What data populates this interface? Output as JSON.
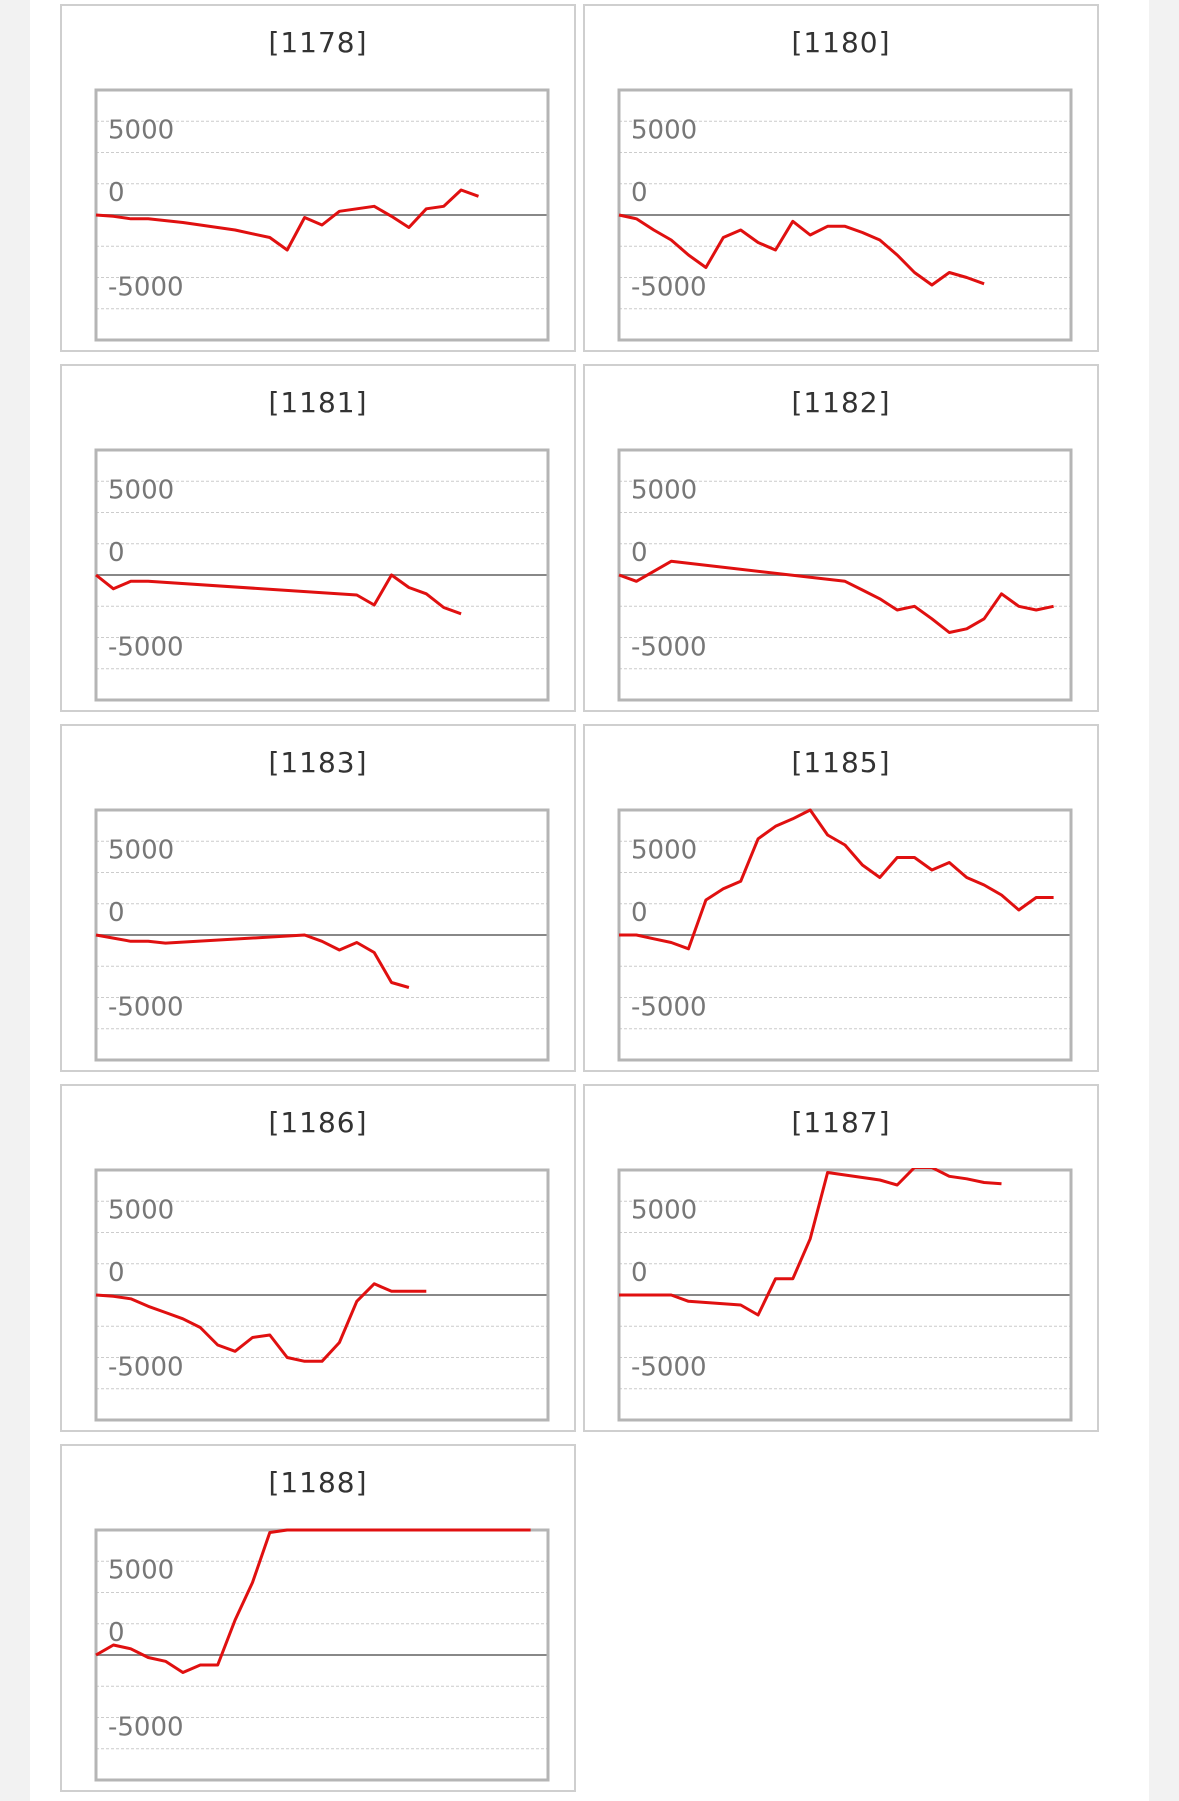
{
  "colors": {
    "line": "#e01010",
    "grid": "#cccccc",
    "zero_line": "#888888",
    "frame": "#b5b5b5",
    "tick_label": "#777777"
  },
  "y_ticks": [
    {
      "value": 5000,
      "label": "5000"
    },
    {
      "value": 0,
      "label": "0"
    },
    {
      "value": -5000,
      "label": "-5000"
    }
  ],
  "chart_data": [
    {
      "type": "line",
      "title": "[1178]",
      "ylim": [
        -10000,
        10000
      ],
      "xlim": [
        0,
        26
      ],
      "grid": true,
      "series": [
        {
          "x": [
            0,
            1,
            2,
            3,
            4,
            5,
            6,
            7,
            8,
            9,
            10,
            11,
            12,
            13,
            14,
            15,
            16,
            17,
            18,
            19,
            20,
            21,
            22
          ],
          "y": [
            0,
            -100,
            -300,
            -300,
            -450,
            -600,
            -800,
            -1000,
            -1200,
            -1500,
            -1800,
            -2800,
            -200,
            -800,
            300,
            500,
            700,
            -100,
            -1000,
            500,
            700,
            2000,
            1500
          ]
        }
      ]
    },
    {
      "type": "line",
      "title": "[1180]",
      "ylim": [
        -10000,
        10000
      ],
      "xlim": [
        0,
        26
      ],
      "grid": true,
      "series": [
        {
          "x": [
            0,
            1,
            2,
            3,
            4,
            5,
            6,
            7,
            8,
            9,
            10,
            11,
            12,
            13,
            14,
            15,
            16,
            17,
            18,
            19,
            20,
            21
          ],
          "y": [
            0,
            -300,
            -1200,
            -2000,
            -3200,
            -4200,
            -1800,
            -1200,
            -2200,
            -2800,
            -500,
            -1600,
            -900,
            -900,
            -1400,
            -2000,
            -3200,
            -4600,
            -5600,
            -4600,
            -5000,
            -5500
          ]
        }
      ]
    },
    {
      "type": "line",
      "title": "[1181]",
      "ylim": [
        -10000,
        10000
      ],
      "xlim": [
        0,
        26
      ],
      "grid": true,
      "series": [
        {
          "x": [
            0,
            1,
            2,
            3,
            15,
            16,
            17,
            18,
            19,
            20,
            21
          ],
          "y": [
            0,
            -1100,
            -500,
            -500,
            -1600,
            -2400,
            0,
            -1000,
            -1500,
            -2600,
            -3100
          ]
        }
      ]
    },
    {
      "type": "line",
      "title": "[1182]",
      "ylim": [
        -10000,
        10000
      ],
      "xlim": [
        0,
        26
      ],
      "grid": true,
      "series": [
        {
          "x": [
            0,
            1,
            2,
            3,
            13,
            14,
            15,
            16,
            17,
            18,
            19,
            20,
            21,
            22,
            23,
            24,
            25
          ],
          "y": [
            0,
            -500,
            300,
            1100,
            -500,
            -1200,
            -1900,
            -2800,
            -2500,
            -3500,
            -4600,
            -4300,
            -3500,
            -1500,
            -2500,
            -2800,
            -2500
          ]
        }
      ]
    },
    {
      "type": "line",
      "title": "[1183]",
      "ylim": [
        -10000,
        10000
      ],
      "xlim": [
        0,
        26
      ],
      "grid": true,
      "series": [
        {
          "x": [
            0,
            1,
            2,
            3,
            4,
            12,
            13,
            14,
            15,
            16,
            17,
            18
          ],
          "y": [
            0,
            -250,
            -500,
            -500,
            -650,
            0,
            -500,
            -1200,
            -600,
            -1400,
            -3800,
            -4200
          ]
        }
      ]
    },
    {
      "type": "line",
      "title": "[1185]",
      "ylim": [
        -10000,
        10000
      ],
      "xlim": [
        0,
        26
      ],
      "grid": true,
      "series": [
        {
          "x": [
            0,
            1,
            2,
            3,
            4,
            5,
            6,
            7,
            8,
            9,
            10,
            11,
            12,
            13,
            14,
            15,
            16,
            17,
            18,
            19,
            20,
            21,
            22,
            23,
            24,
            25
          ],
          "y": [
            0,
            0,
            -300,
            -600,
            -1100,
            2800,
            3700,
            4300,
            7700,
            8700,
            9300,
            10000,
            8000,
            7200,
            5600,
            4600,
            6200,
            6200,
            5200,
            5800,
            4600,
            4000,
            3200,
            2000,
            3000,
            3000
          ]
        }
      ]
    },
    {
      "type": "line",
      "title": "[1186]",
      "ylim": [
        -10000,
        10000
      ],
      "xlim": [
        0,
        26
      ],
      "grid": true,
      "series": [
        {
          "x": [
            0,
            1,
            2,
            3,
            4,
            5,
            6,
            7,
            8,
            9,
            10,
            11,
            12,
            13,
            14,
            15,
            16,
            17,
            18,
            19
          ],
          "y": [
            0,
            -100,
            -300,
            -900,
            -1400,
            -1900,
            -2600,
            -4000,
            -4500,
            -3400,
            -3200,
            -5000,
            -5300,
            -5300,
            -3800,
            -500,
            900,
            300,
            300,
            300
          ]
        }
      ]
    },
    {
      "type": "line",
      "title": "[1187]",
      "ylim": [
        -10000,
        10000
      ],
      "xlim": [
        0,
        26
      ],
      "grid": true,
      "series": [
        {
          "x": [
            0,
            1,
            2,
            3,
            4,
            5,
            6,
            7,
            8,
            9,
            10,
            11,
            12,
            13,
            14,
            15,
            16,
            17,
            18,
            19,
            20,
            21,
            22
          ],
          "y": [
            0,
            0,
            0,
            0,
            -500,
            -600,
            -700,
            -800,
            -1600,
            1300,
            1300,
            4500,
            9800,
            9600,
            9400,
            9200,
            8800,
            10200,
            10200,
            9500,
            9300,
            9000,
            8900
          ]
        }
      ]
    },
    {
      "type": "line",
      "title": "[1188]",
      "ylim": [
        -10000,
        10000
      ],
      "xlim": [
        0,
        26
      ],
      "grid": true,
      "series": [
        {
          "x": [
            0,
            1,
            2,
            3,
            4,
            5,
            6,
            7,
            8,
            9,
            10,
            11,
            12,
            13,
            14,
            15,
            16,
            17,
            18,
            19,
            20,
            21,
            22,
            23,
            24,
            25
          ],
          "y": [
            0,
            800,
            500,
            -200,
            -500,
            -1400,
            -800,
            -800,
            2800,
            5800,
            9800,
            10000,
            10000,
            10000,
            10000,
            10000,
            10000,
            10000,
            10000,
            10000,
            10000,
            10000,
            10000,
            10000,
            10000,
            10000
          ]
        }
      ]
    }
  ]
}
